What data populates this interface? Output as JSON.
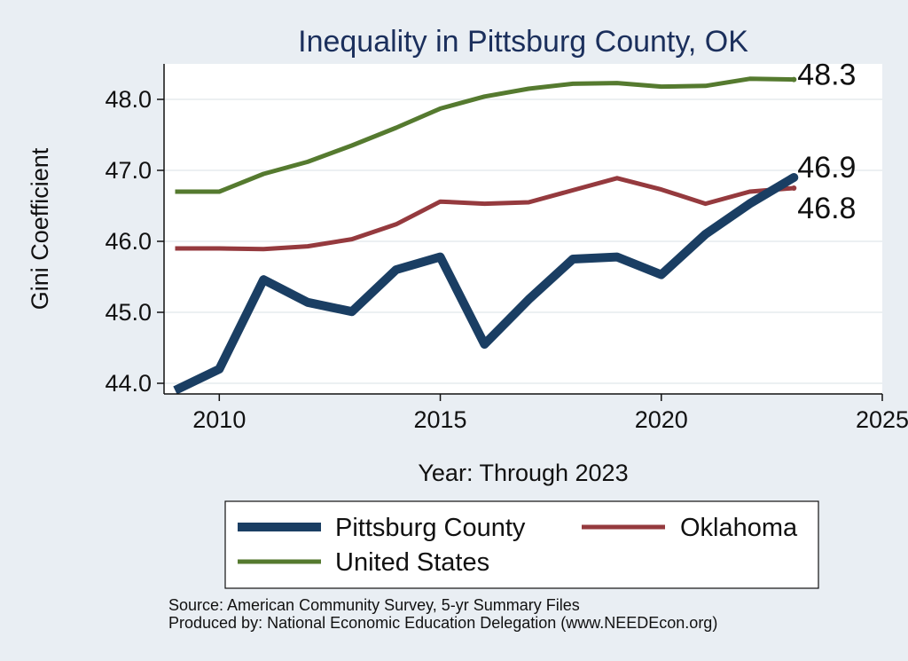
{
  "chart_data": {
    "type": "line",
    "title": "Inequality in Pittsburg County, OK",
    "xlabel": "Year: Through 2023",
    "ylabel": "Gini Coefficient",
    "xlim": [
      2008.75,
      2025
    ],
    "ylim": [
      43.85,
      48.5
    ],
    "xticks": [
      2010,
      2015,
      2020,
      2025
    ],
    "yticks": [
      44.0,
      45.0,
      46.0,
      47.0,
      48.0
    ],
    "x": [
      2009,
      2010,
      2011,
      2012,
      2013,
      2014,
      2015,
      2016,
      2017,
      2018,
      2019,
      2020,
      2021,
      2022,
      2023
    ],
    "series": [
      {
        "name": "Pittsburg County",
        "color": "#1a3e63",
        "values": [
          43.9,
          44.2,
          45.46,
          45.14,
          45.01,
          45.6,
          45.78,
          44.55,
          45.18,
          45.75,
          45.78,
          45.53,
          46.1,
          46.53,
          46.9
        ],
        "end_label": "46.9"
      },
      {
        "name": "Oklahoma",
        "color": "#953a3e",
        "values": [
          45.9,
          45.9,
          45.89,
          45.93,
          46.03,
          46.24,
          46.56,
          46.53,
          46.55,
          46.72,
          46.89,
          46.73,
          46.53,
          46.7,
          46.75
        ],
        "end_label": "46.8"
      },
      {
        "name": "United States",
        "color": "#557a2f",
        "values": [
          46.7,
          46.7,
          46.95,
          47.12,
          47.35,
          47.6,
          47.87,
          48.04,
          48.15,
          48.22,
          48.23,
          48.18,
          48.19,
          48.29,
          48.28
        ],
        "end_label": "48.3"
      }
    ],
    "legend": {
      "position": "bottom",
      "items": [
        "Pittsburg County",
        "Oklahoma",
        "United States"
      ]
    },
    "grid": true
  },
  "footer": {
    "source": "Source: American Community Survey, 5-yr Summary Files",
    "produced_by": "Produced by: National Economic Education Delegation (www.NEEDEcon.org)"
  }
}
